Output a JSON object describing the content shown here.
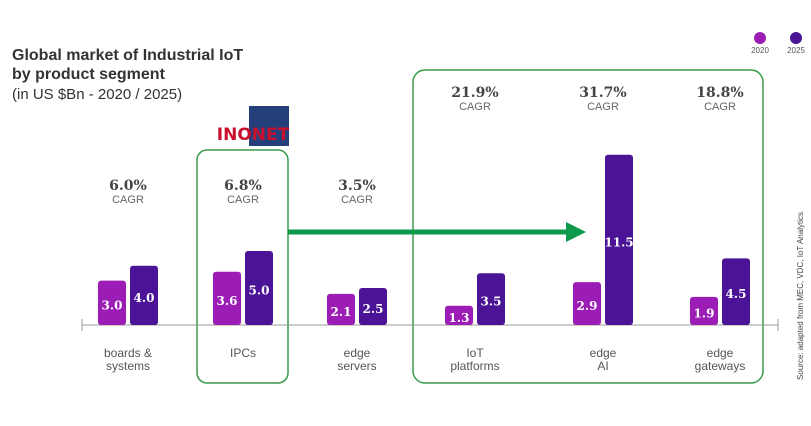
{
  "chart_data": {
    "type": "bar",
    "title": "Global market of Industrial IoT\nby product segment",
    "subtitle": "(in US $Bn - 2020 / 2025)",
    "logo": "INONET",
    "source": "Source: adapted from MEC, VDC, IoT Analytics",
    "categories": [
      "boards &\nsystems",
      "IPCs",
      "edge\nservers",
      "IoT\nplatforms",
      "edge\nAI",
      "edge\ngateways"
    ],
    "series": [
      {
        "name": "2020",
        "color": "#9c1db5",
        "values": [
          3.0,
          3.6,
          2.1,
          1.3,
          2.9,
          1.9
        ],
        "value_labels": [
          "3.0",
          "3.6",
          "2.1",
          "1.3",
          "2.9",
          "1.9"
        ]
      },
      {
        "name": "2025",
        "color": "#4b1497",
        "values": [
          4.0,
          5.0,
          2.5,
          3.5,
          11.5,
          4.5
        ],
        "value_labels": [
          "4.0",
          "5.0",
          "2.5",
          "3.5",
          "11.5",
          "4.5"
        ]
      }
    ],
    "annotations": [
      {
        "rate": "6.0%",
        "text": "CAGR"
      },
      {
        "rate": "6.8%",
        "text": "CAGR"
      },
      {
        "rate": "3.5%",
        "text": "CAGR"
      },
      {
        "rate": "21.9%",
        "text": "CAGR"
      },
      {
        "rate": "31.7%",
        "text": "CAGR"
      },
      {
        "rate": "18.8%",
        "text": "CAGR"
      }
    ]
  }
}
